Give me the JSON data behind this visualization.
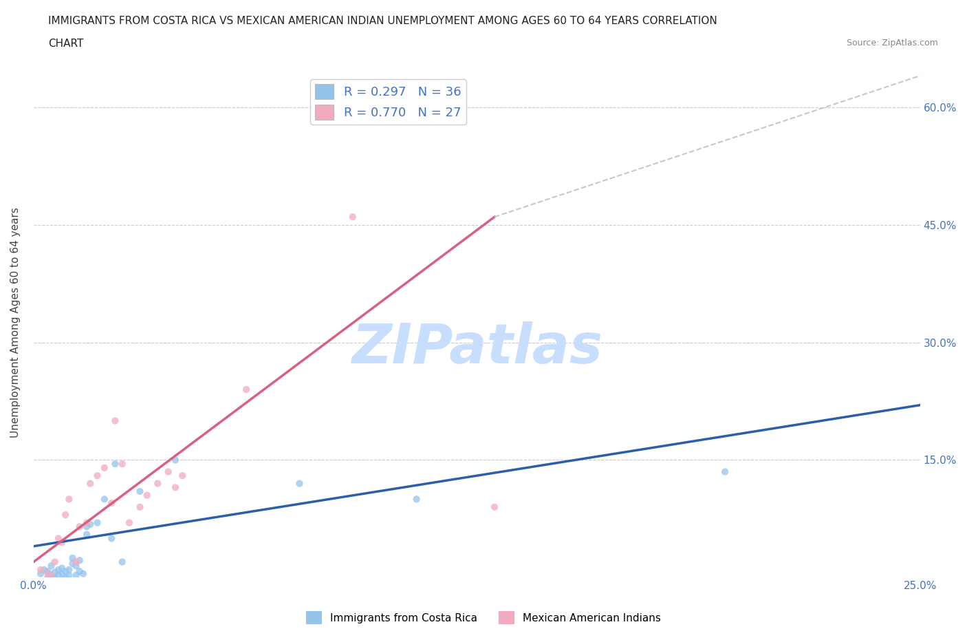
{
  "title_line1": "IMMIGRANTS FROM COSTA RICA VS MEXICAN AMERICAN INDIAN UNEMPLOYMENT AMONG AGES 60 TO 64 YEARS CORRELATION",
  "title_line2": "CHART",
  "source_text": "Source: ZipAtlas.com",
  "ylabel": "Unemployment Among Ages 60 to 64 years",
  "xlim": [
    0.0,
    0.25
  ],
  "ylim": [
    0.0,
    0.65
  ],
  "xticks": [
    0.0,
    0.05,
    0.1,
    0.15,
    0.2,
    0.25
  ],
  "yticks": [
    0.0,
    0.15,
    0.3,
    0.45,
    0.6
  ],
  "legend_r_blue": "R = 0.297",
  "legend_n_blue": "N = 36",
  "legend_r_pink": "R = 0.770",
  "legend_n_pink": "N = 27",
  "color_blue": "#94C4EC",
  "color_pink": "#F2ABBE",
  "color_blue_line": "#2B5FA8",
  "color_pink_line": "#D96080",
  "color_dashed_line": "#C8C8C8",
  "watermark_text": "ZIPatlas",
  "blue_scatter_x": [
    0.002,
    0.003,
    0.004,
    0.004,
    0.005,
    0.005,
    0.006,
    0.006,
    0.007,
    0.007,
    0.008,
    0.008,
    0.009,
    0.009,
    0.01,
    0.01,
    0.011,
    0.011,
    0.012,
    0.012,
    0.013,
    0.013,
    0.014,
    0.015,
    0.015,
    0.016,
    0.018,
    0.02,
    0.022,
    0.023,
    0.03,
    0.04,
    0.075,
    0.108,
    0.195,
    0.025
  ],
  "blue_scatter_y": [
    0.005,
    0.01,
    0.0,
    0.008,
    0.003,
    0.015,
    0.0,
    0.007,
    0.003,
    0.01,
    0.005,
    0.012,
    0.0,
    0.008,
    0.003,
    0.01,
    0.018,
    0.025,
    0.003,
    0.015,
    0.008,
    0.022,
    0.005,
    0.055,
    0.065,
    0.068,
    0.07,
    0.1,
    0.05,
    0.145,
    0.11,
    0.15,
    0.12,
    0.1,
    0.135,
    0.02
  ],
  "pink_scatter_x": [
    0.002,
    0.004,
    0.005,
    0.006,
    0.007,
    0.008,
    0.009,
    0.01,
    0.012,
    0.013,
    0.015,
    0.016,
    0.018,
    0.02,
    0.022,
    0.023,
    0.025,
    0.027,
    0.03,
    0.032,
    0.035,
    0.038,
    0.04,
    0.042,
    0.06,
    0.09,
    0.13
  ],
  "pink_scatter_y": [
    0.01,
    0.005,
    0.002,
    0.02,
    0.05,
    0.045,
    0.08,
    0.1,
    0.02,
    0.065,
    0.07,
    0.12,
    0.13,
    0.14,
    0.095,
    0.2,
    0.145,
    0.07,
    0.09,
    0.105,
    0.12,
    0.135,
    0.115,
    0.13,
    0.24,
    0.46,
    0.09
  ],
  "blue_line_x": [
    0.0,
    0.25
  ],
  "blue_line_y": [
    0.04,
    0.22
  ],
  "pink_line_x": [
    0.0,
    0.13
  ],
  "pink_line_y": [
    0.02,
    0.46
  ],
  "dashed_line_x": [
    0.13,
    0.25
  ],
  "dashed_line_y": [
    0.46,
    0.64
  ],
  "legend_fontsize": 13,
  "axis_tick_fontsize": 11,
  "title_fontsize": 11
}
